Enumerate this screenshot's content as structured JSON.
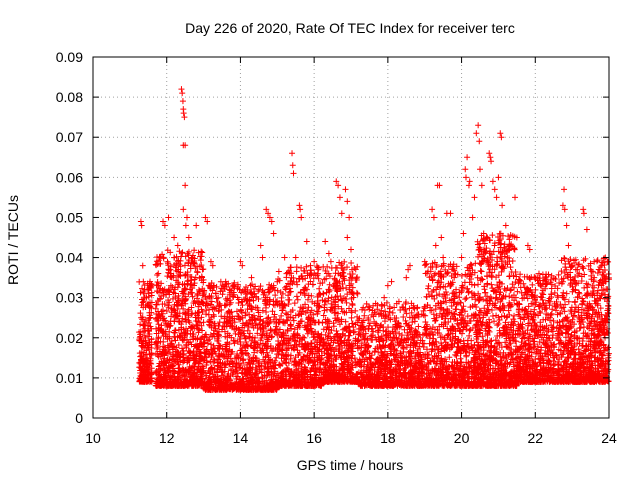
{
  "chart_data": {
    "type": "scatter",
    "title": "Day 226 of 2020, Rate Of TEC Index for receiver terc",
    "xlabel": "GPS time / hours",
    "ylabel": "ROTI / TECUs",
    "xlim": [
      10,
      24
    ],
    "ylim": [
      0,
      0.09
    ],
    "xticks": [
      10,
      12,
      14,
      16,
      18,
      20,
      22,
      24
    ],
    "yticks": [
      0,
      0.01,
      0.02,
      0.03,
      0.04,
      0.05,
      0.06,
      0.07,
      0.08,
      0.09
    ],
    "ytick_labels": [
      "0",
      "0.01",
      "0.02",
      "0.03",
      "0.04",
      "0.05",
      "0.06",
      "0.07",
      "0.08",
      "0.09"
    ],
    "grid": true,
    "legend": "none",
    "marker": "+",
    "color": "#ff0000",
    "series": [
      {
        "name": "ROTI",
        "points": [
          [
            11.3,
            0.049
          ],
          [
            11.32,
            0.048
          ],
          [
            11.35,
            0.038
          ],
          [
            11.4,
            0.032
          ],
          [
            11.45,
            0.03
          ],
          [
            11.5,
            0.028
          ],
          [
            11.9,
            0.049
          ],
          [
            11.95,
            0.048
          ],
          [
            12.05,
            0.05
          ],
          [
            12.1,
            0.037
          ],
          [
            12.2,
            0.04
          ],
          [
            12.4,
            0.082
          ],
          [
            12.42,
            0.081
          ],
          [
            12.44,
            0.079
          ],
          [
            12.45,
            0.077
          ],
          [
            12.46,
            0.076
          ],
          [
            12.48,
            0.075
          ],
          [
            12.45,
            0.068
          ],
          [
            12.5,
            0.068
          ],
          [
            12.5,
            0.058
          ],
          [
            12.45,
            0.052
          ],
          [
            12.52,
            0.048
          ],
          [
            12.6,
            0.045
          ],
          [
            12.7,
            0.04
          ],
          [
            12.2,
            0.045
          ],
          [
            12.3,
            0.043
          ],
          [
            12.55,
            0.05
          ],
          [
            12.8,
            0.048
          ],
          [
            13.05,
            0.05
          ],
          [
            13.1,
            0.049
          ],
          [
            13.2,
            0.039
          ],
          [
            13.25,
            0.038
          ],
          [
            13.6,
            0.034
          ],
          [
            13.7,
            0.032
          ],
          [
            14.0,
            0.039
          ],
          [
            14.05,
            0.038
          ],
          [
            14.3,
            0.035
          ],
          [
            14.55,
            0.043
          ],
          [
            14.6,
            0.04
          ],
          [
            14.7,
            0.052
          ],
          [
            14.75,
            0.051
          ],
          [
            14.8,
            0.05
          ],
          [
            14.85,
            0.049
          ],
          [
            14.9,
            0.046
          ],
          [
            14.75,
            0.032
          ],
          [
            14.9,
            0.033
          ],
          [
            15.2,
            0.04
          ],
          [
            15.25,
            0.036
          ],
          [
            15.4,
            0.066
          ],
          [
            15.42,
            0.063
          ],
          [
            15.44,
            0.061
          ],
          [
            15.5,
            0.04
          ],
          [
            15.6,
            0.053
          ],
          [
            15.62,
            0.052
          ],
          [
            15.65,
            0.05
          ],
          [
            15.8,
            0.044
          ],
          [
            15.9,
            0.038
          ],
          [
            16.0,
            0.039
          ],
          [
            16.1,
            0.036
          ],
          [
            16.3,
            0.044
          ],
          [
            16.4,
            0.041
          ],
          [
            16.6,
            0.059
          ],
          [
            16.65,
            0.058
          ],
          [
            16.7,
            0.055
          ],
          [
            16.75,
            0.051
          ],
          [
            16.85,
            0.057
          ],
          [
            16.9,
            0.054
          ],
          [
            16.95,
            0.05
          ],
          [
            16.9,
            0.045
          ],
          [
            17.0,
            0.042
          ],
          [
            17.0,
            0.035
          ],
          [
            17.3,
            0.027
          ],
          [
            17.6,
            0.028
          ],
          [
            17.9,
            0.03
          ],
          [
            18.0,
            0.033
          ],
          [
            18.1,
            0.034
          ],
          [
            18.3,
            0.029
          ],
          [
            18.5,
            0.035
          ],
          [
            18.55,
            0.037
          ],
          [
            18.6,
            0.038
          ],
          [
            18.7,
            0.028
          ],
          [
            19.2,
            0.052
          ],
          [
            19.25,
            0.05
          ],
          [
            19.3,
            0.043
          ],
          [
            19.35,
            0.058
          ],
          [
            19.4,
            0.058
          ],
          [
            19.45,
            0.045
          ],
          [
            19.5,
            0.04
          ],
          [
            19.6,
            0.051
          ],
          [
            19.7,
            0.051
          ],
          [
            19.8,
            0.035
          ],
          [
            19.85,
            0.032
          ],
          [
            20.0,
            0.04
          ],
          [
            20.05,
            0.046
          ],
          [
            20.1,
            0.062
          ],
          [
            20.12,
            0.06
          ],
          [
            20.15,
            0.065
          ],
          [
            20.2,
            0.058
          ],
          [
            20.22,
            0.059
          ],
          [
            20.3,
            0.05
          ],
          [
            20.35,
            0.055
          ],
          [
            20.4,
            0.071
          ],
          [
            20.45,
            0.073
          ],
          [
            20.48,
            0.069
          ],
          [
            20.5,
            0.062
          ],
          [
            20.55,
            0.058
          ],
          [
            20.6,
            0.046
          ],
          [
            20.7,
            0.045
          ],
          [
            20.75,
            0.066
          ],
          [
            20.78,
            0.065
          ],
          [
            20.8,
            0.064
          ],
          [
            20.85,
            0.059
          ],
          [
            20.9,
            0.057
          ],
          [
            20.95,
            0.055
          ],
          [
            21.0,
            0.06
          ],
          [
            21.05,
            0.071
          ],
          [
            21.08,
            0.07
          ],
          [
            21.1,
            0.053
          ],
          [
            21.2,
            0.048
          ],
          [
            21.3,
            0.042
          ],
          [
            21.45,
            0.055
          ],
          [
            21.5,
            0.045
          ],
          [
            21.8,
            0.043
          ],
          [
            21.85,
            0.042
          ],
          [
            22.0,
            0.035
          ],
          [
            22.1,
            0.036
          ],
          [
            22.4,
            0.025
          ],
          [
            22.6,
            0.028
          ],
          [
            22.75,
            0.053
          ],
          [
            22.78,
            0.057
          ],
          [
            22.8,
            0.052
          ],
          [
            22.85,
            0.048
          ],
          [
            22.9,
            0.043
          ],
          [
            23.0,
            0.038
          ],
          [
            23.1,
            0.037
          ],
          [
            23.3,
            0.052
          ],
          [
            23.32,
            0.051
          ],
          [
            23.4,
            0.047
          ],
          [
            23.5,
            0.037
          ],
          [
            23.6,
            0.035
          ],
          [
            23.8,
            0.038
          ],
          [
            23.9,
            0.04
          ],
          [
            23.95,
            0.039
          ]
        ]
      }
    ],
    "background_cloud": {
      "description_of_density": "dense cloud of ROTI values between 11.3h and 24h",
      "segments": [
        {
          "x_range": [
            11.25,
            11.6
          ],
          "y_range": [
            0.005,
            0.03
          ],
          "count": 260
        },
        {
          "x_range": [
            11.7,
            13.0
          ],
          "y_range": [
            0.004,
            0.038
          ],
          "count": 900
        },
        {
          "x_range": [
            13.0,
            15.0
          ],
          "y_range": [
            0.003,
            0.03
          ],
          "count": 1100
        },
        {
          "x_range": [
            15.0,
            16.2
          ],
          "y_range": [
            0.004,
            0.034
          ],
          "count": 700
        },
        {
          "x_range": [
            16.2,
            17.2
          ],
          "y_range": [
            0.005,
            0.035
          ],
          "count": 600
        },
        {
          "x_range": [
            17.2,
            19.0
          ],
          "y_range": [
            0.004,
            0.025
          ],
          "count": 900
        },
        {
          "x_range": [
            19.0,
            20.4
          ],
          "y_range": [
            0.004,
            0.035
          ],
          "count": 800
        },
        {
          "x_range": [
            20.4,
            21.5
          ],
          "y_range": [
            0.004,
            0.042
          ],
          "count": 800
        },
        {
          "x_range": [
            21.5,
            22.7
          ],
          "y_range": [
            0.005,
            0.032
          ],
          "count": 700
        },
        {
          "x_range": [
            22.7,
            24.0
          ],
          "y_range": [
            0.005,
            0.036
          ],
          "count": 900
        }
      ]
    }
  }
}
